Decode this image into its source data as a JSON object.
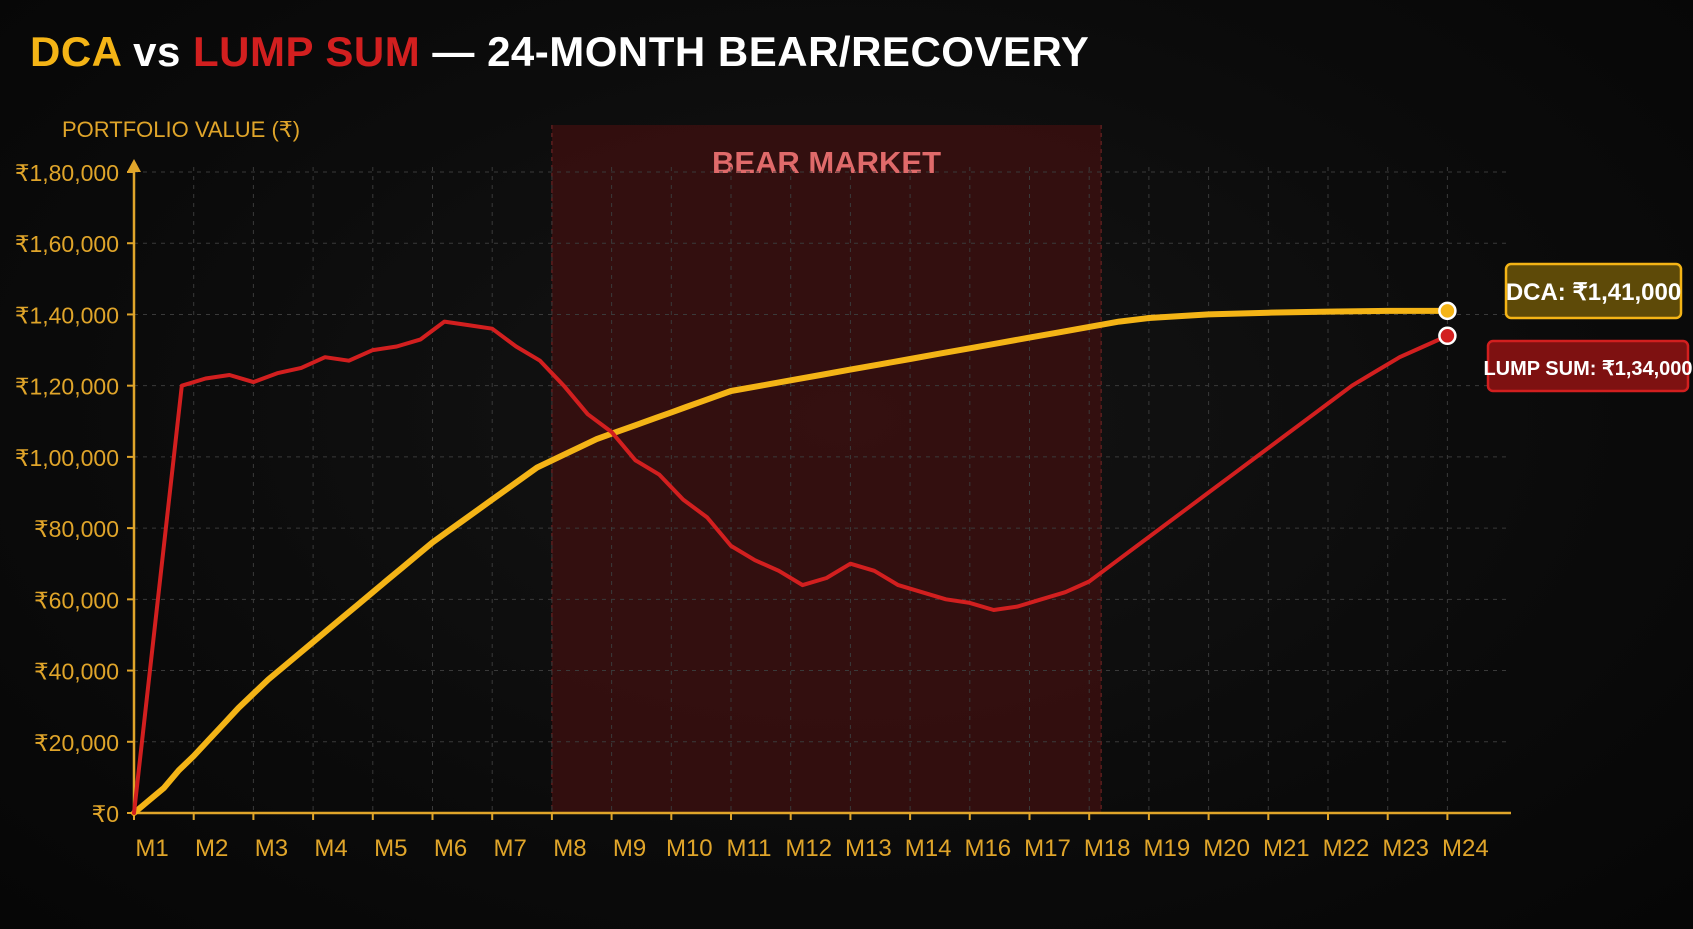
{
  "title": {
    "part1": "DCA",
    "part2": " vs ",
    "part3": "LUMP SUM",
    "part4": " — 24-MONTH BEAR/RECOVERY"
  },
  "colors": {
    "dca": "#f4b416",
    "lump_sum": "#d21f1f",
    "bear_zone": "#3a0f0f",
    "axis": "#e0a52a",
    "grid": "#3a3a3a"
  },
  "chart_data": {
    "type": "line",
    "ylabel": "PORTFOLIO VALUE (₹)",
    "ylim": [
      0,
      180000
    ],
    "y_ticks": [
      {
        "value": 0,
        "label": "₹0"
      },
      {
        "value": 20000,
        "label": "₹20,000"
      },
      {
        "value": 40000,
        "label": "₹40,000"
      },
      {
        "value": 60000,
        "label": "₹60,000"
      },
      {
        "value": 80000,
        "label": "₹80,000"
      },
      {
        "value": 100000,
        "label": "₹1,00,000"
      },
      {
        "value": 120000,
        "label": "₹1,20,000"
      },
      {
        "value": 140000,
        "label": "₹1,40,000"
      },
      {
        "value": 160000,
        "label": "₹1,60,000"
      },
      {
        "value": 180000,
        "label": "₹1,80,000"
      }
    ],
    "xlim": [
      1,
      24
    ],
    "x_ticks": [
      {
        "value": 1,
        "label": "M1"
      },
      {
        "value": 2,
        "label": "M2"
      },
      {
        "value": 3,
        "label": "M3"
      },
      {
        "value": 4,
        "label": "M4"
      },
      {
        "value": 5,
        "label": "M5"
      },
      {
        "value": 6,
        "label": "M6"
      },
      {
        "value": 7,
        "label": "M7"
      },
      {
        "value": 8,
        "label": "M8"
      },
      {
        "value": 9,
        "label": "M9"
      },
      {
        "value": 10,
        "label": "M10"
      },
      {
        "value": 11,
        "label": "M11"
      },
      {
        "value": 12,
        "label": "M12"
      },
      {
        "value": 13,
        "label": "M13"
      },
      {
        "value": 14,
        "label": "M14"
      },
      {
        "value": 15,
        "label": "M16"
      },
      {
        "value": 16,
        "label": "M17"
      },
      {
        "value": 17,
        "label": "M18"
      },
      {
        "value": 18,
        "label": "M19"
      },
      {
        "value": 19,
        "label": "M20"
      },
      {
        "value": 20,
        "label": "M21"
      },
      {
        "value": 21,
        "label": "M22"
      },
      {
        "value": 22,
        "label": "M23"
      },
      {
        "value": 23,
        "label": "M24"
      }
    ],
    "grid": true,
    "bear_market": {
      "label": "BEAR MARKET",
      "x_start": 8,
      "x_end": 17.2
    },
    "series": [
      {
        "name": "DCA",
        "color": "#f4b416",
        "end_label": "DCA: ₹1,41,000",
        "points": [
          [
            1,
            0
          ],
          [
            1.25,
            3500
          ],
          [
            1.5,
            7000
          ],
          [
            1.75,
            12000
          ],
          [
            2,
            16000
          ],
          [
            2.25,
            20500
          ],
          [
            2.5,
            25000
          ],
          [
            2.75,
            29500
          ],
          [
            3,
            33500
          ],
          [
            3.25,
            37500
          ],
          [
            3.5,
            41000
          ],
          [
            3.75,
            44500
          ],
          [
            4,
            48000
          ],
          [
            4.25,
            51500
          ],
          [
            4.5,
            55000
          ],
          [
            4.75,
            58500
          ],
          [
            5,
            62000
          ],
          [
            5.25,
            65500
          ],
          [
            5.5,
            69000
          ],
          [
            5.75,
            72500
          ],
          [
            6,
            76000
          ],
          [
            6.25,
            79000
          ],
          [
            6.5,
            82000
          ],
          [
            6.75,
            85000
          ],
          [
            7,
            88000
          ],
          [
            7.25,
            91000
          ],
          [
            7.5,
            94000
          ],
          [
            7.75,
            97000
          ],
          [
            8,
            99000
          ],
          [
            8.25,
            101000
          ],
          [
            8.5,
            103000
          ],
          [
            8.75,
            105000
          ],
          [
            9,
            106500
          ],
          [
            9.25,
            108000
          ],
          [
            9.5,
            109500
          ],
          [
            9.75,
            111000
          ],
          [
            10,
            112500
          ],
          [
            10.25,
            114000
          ],
          [
            10.5,
            115500
          ],
          [
            10.75,
            117000
          ],
          [
            11,
            118500
          ],
          [
            11.5,
            120000
          ],
          [
            12,
            121500
          ],
          [
            12.5,
            123000
          ],
          [
            13,
            124500
          ],
          [
            13.5,
            126000
          ],
          [
            14,
            127500
          ],
          [
            14.5,
            129000
          ],
          [
            15,
            130500
          ],
          [
            15.5,
            132000
          ],
          [
            16,
            133500
          ],
          [
            16.5,
            135000
          ],
          [
            17,
            136500
          ],
          [
            17.5,
            138000
          ],
          [
            18,
            139000
          ],
          [
            19,
            140000
          ],
          [
            20,
            140500
          ],
          [
            21,
            140800
          ],
          [
            22,
            141000
          ],
          [
            23,
            141000
          ]
        ]
      },
      {
        "name": "LUMP SUM",
        "color": "#d21f1f",
        "end_label": "LUMP SUM: ₹1,34,000",
        "points": [
          [
            1,
            0
          ],
          [
            1.8,
            120000
          ],
          [
            2.2,
            122000
          ],
          [
            2.6,
            123000
          ],
          [
            3,
            121000
          ],
          [
            3.4,
            123500
          ],
          [
            3.8,
            125000
          ],
          [
            4.2,
            128000
          ],
          [
            4.6,
            127000
          ],
          [
            5,
            130000
          ],
          [
            5.4,
            131000
          ],
          [
            5.8,
            133000
          ],
          [
            6.2,
            138000
          ],
          [
            6.6,
            137000
          ],
          [
            7,
            136000
          ],
          [
            7.4,
            131000
          ],
          [
            7.8,
            127000
          ],
          [
            8.2,
            120000
          ],
          [
            8.6,
            112000
          ],
          [
            9,
            107000
          ],
          [
            9.4,
            99000
          ],
          [
            9.8,
            95000
          ],
          [
            10.2,
            88000
          ],
          [
            10.6,
            83000
          ],
          [
            11,
            75000
          ],
          [
            11.4,
            71000
          ],
          [
            11.8,
            68000
          ],
          [
            12.2,
            64000
          ],
          [
            12.6,
            66000
          ],
          [
            13,
            70000
          ],
          [
            13.4,
            68000
          ],
          [
            13.8,
            64000
          ],
          [
            14.2,
            62000
          ],
          [
            14.6,
            60000
          ],
          [
            15,
            59000
          ],
          [
            15.4,
            57000
          ],
          [
            15.8,
            58000
          ],
          [
            16.2,
            60000
          ],
          [
            16.6,
            62000
          ],
          [
            17,
            65000
          ],
          [
            17.4,
            70000
          ],
          [
            17.8,
            75000
          ],
          [
            18.2,
            80000
          ],
          [
            18.6,
            85000
          ],
          [
            19,
            90000
          ],
          [
            19.4,
            95000
          ],
          [
            19.8,
            100000
          ],
          [
            20.2,
            105000
          ],
          [
            20.6,
            110000
          ],
          [
            21,
            115000
          ],
          [
            21.4,
            120000
          ],
          [
            21.8,
            124000
          ],
          [
            22.2,
            128000
          ],
          [
            22.6,
            131000
          ],
          [
            23,
            134000
          ]
        ]
      }
    ]
  }
}
